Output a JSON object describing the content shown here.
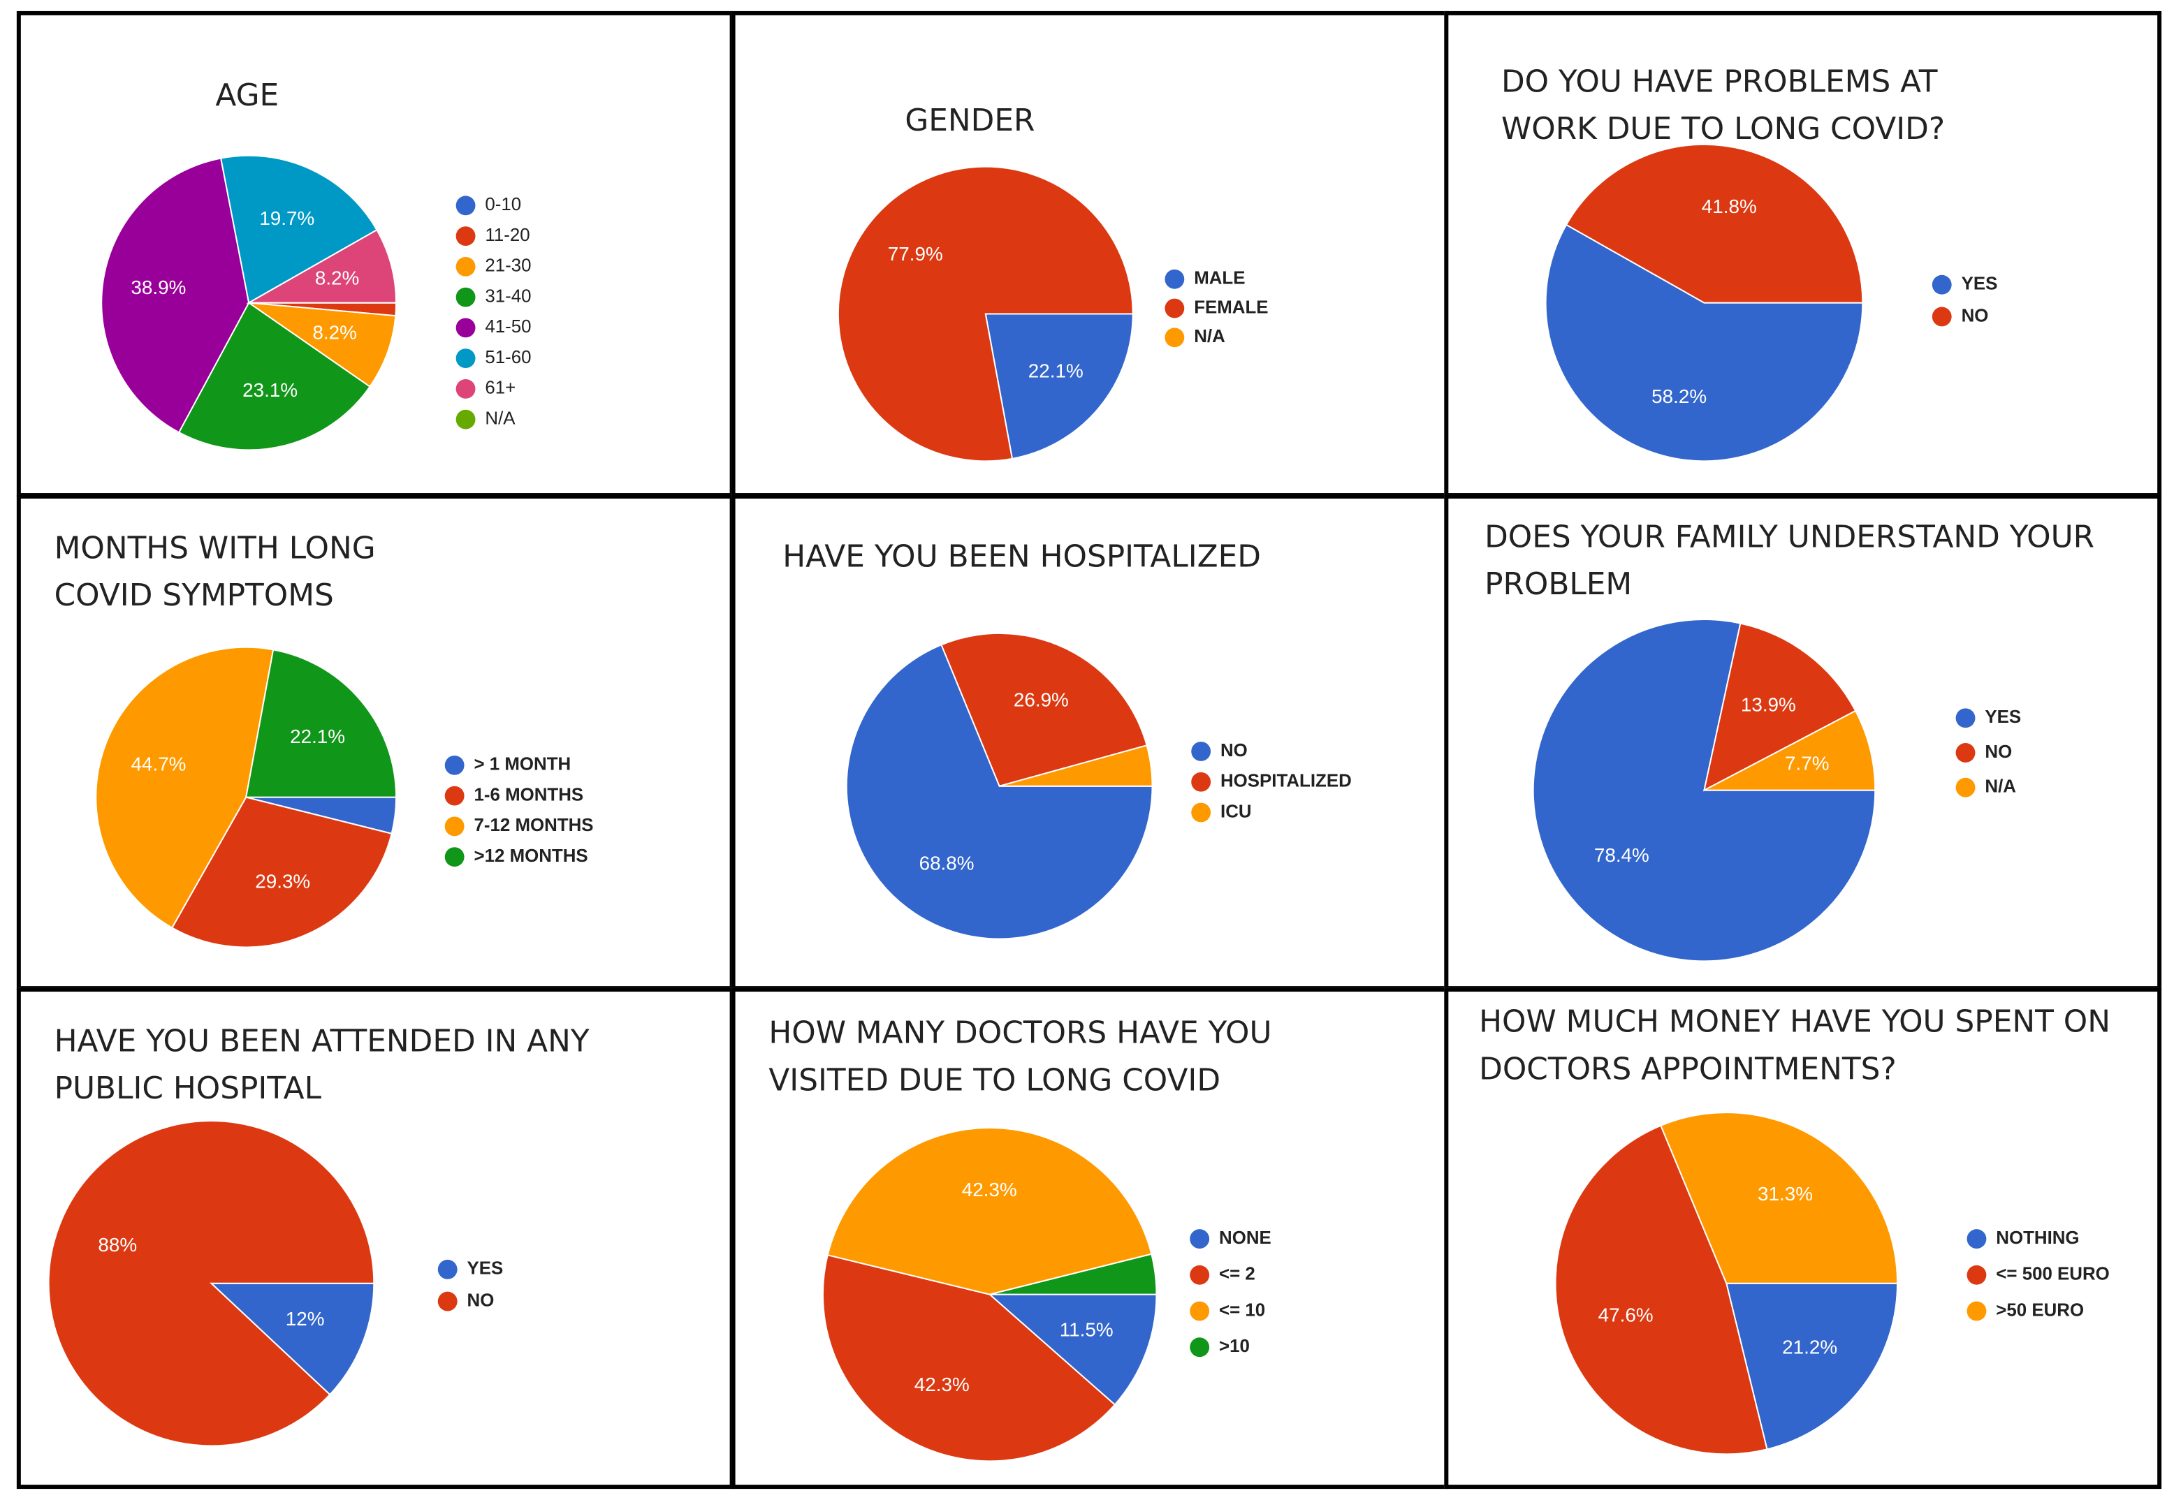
{
  "chart_data": [
    {
      "type": "pie",
      "title": "AGE",
      "categories": [
        "0-10",
        "11-20",
        "21-30",
        "31-40",
        "41-50",
        "51-60",
        "61+",
        "N/A"
      ],
      "values": [
        0,
        1.4,
        8.2,
        23.1,
        38.9,
        19.7,
        8.2,
        0
      ],
      "value_labels": [
        null,
        null,
        "8.2%",
        "23.1%",
        "38.9%",
        "19.7%",
        "8.2%",
        null
      ],
      "colors": [
        "#3366cc",
        "#dc3912",
        "#ff9900",
        "#109618",
        "#990099",
        "#0099c6",
        "#dd4477",
        "#66aa00"
      ]
    },
    {
      "type": "pie",
      "title": "GENDER",
      "categories": [
        "MALE",
        "FEMALE",
        "N/A"
      ],
      "values": [
        22.1,
        77.9,
        0
      ],
      "value_labels": [
        "22.1%",
        "77.9%",
        null
      ],
      "colors": [
        "#3366cc",
        "#dc3912",
        "#ff9900"
      ]
    },
    {
      "type": "pie",
      "title": "DO YOU HAVE PROBLEMS AT WORK DUE TO LONG COVID?",
      "categories": [
        "YES",
        "NO"
      ],
      "values": [
        58.2,
        41.8
      ],
      "value_labels": [
        "58.2%",
        "41.8%"
      ],
      "colors": [
        "#3366cc",
        "#dc3912"
      ]
    },
    {
      "type": "pie",
      "title": "MONTHS WITH LONG COVID SYMPTOMS",
      "categories": [
        "> 1 MONTH",
        "1-6 MONTHS",
        "7-12 MONTHS",
        ">12 MONTHS"
      ],
      "values": [
        3.9,
        29.3,
        44.7,
        22.1
      ],
      "value_labels": [
        null,
        "29.3%",
        "44.7%",
        "22.1%"
      ],
      "colors": [
        "#3366cc",
        "#dc3912",
        "#ff9900",
        "#109618"
      ]
    },
    {
      "type": "pie",
      "title": "HAVE YOU BEEN HOSPITALIZED",
      "categories": [
        "NO",
        "HOSPITALIZED",
        "ICU"
      ],
      "values": [
        68.8,
        26.9,
        4.3
      ],
      "value_labels": [
        "68.8%",
        "26.9%",
        null
      ],
      "colors": [
        "#3366cc",
        "#dc3912",
        "#ff9900"
      ]
    },
    {
      "type": "pie",
      "title": "DOES YOUR FAMILY UNDERSTAND YOUR PROBLEM",
      "categories": [
        "YES",
        "NO",
        "N/A"
      ],
      "values": [
        78.4,
        13.9,
        7.7
      ],
      "value_labels": [
        "78.4%",
        "13.9%",
        "7.7%"
      ],
      "colors": [
        "#3366cc",
        "#dc3912",
        "#ff9900"
      ]
    },
    {
      "type": "pie",
      "title": "HAVE YOU BEEN ATTENDED IN ANY PUBLIC HOSPITAL",
      "categories": [
        "YES",
        "NO"
      ],
      "values": [
        12,
        88
      ],
      "value_labels": [
        "12%",
        "88%"
      ],
      "colors": [
        "#3366cc",
        "#dc3912"
      ]
    },
    {
      "type": "pie",
      "title": "HOW MANY DOCTORS HAVE YOU VISITED DUE TO LONG COVID",
      "categories": [
        "NONE",
        "<= 2",
        "<= 10",
        ">10"
      ],
      "values": [
        11.5,
        42.3,
        42.3,
        3.9
      ],
      "value_labels": [
        "11.5%",
        "42.3%",
        "42.3%",
        null
      ],
      "colors": [
        "#3366cc",
        "#dc3912",
        "#ff9900",
        "#109618"
      ]
    },
    {
      "type": "pie",
      "title": "HOW MUCH MONEY HAVE YOU SPENT ON DOCTORS APPOINTMENTS?",
      "categories": [
        "NOTHING",
        "<= 500 EURO",
        ">50 EURO"
      ],
      "values": [
        21.2,
        47.6,
        31.3
      ],
      "value_labels": [
        "21.2%",
        "47.6%",
        "31.3%"
      ],
      "colors": [
        "#3366cc",
        "#dc3912",
        "#ff9900"
      ]
    }
  ]
}
